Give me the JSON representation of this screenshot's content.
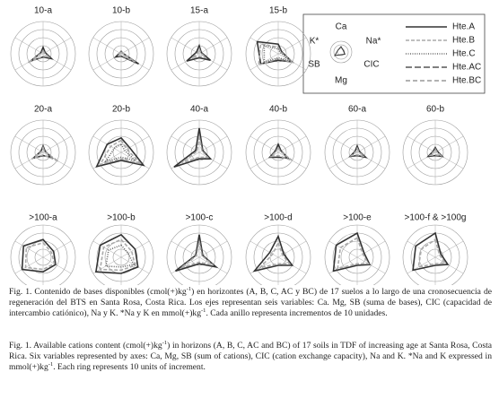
{
  "legend": {
    "axes": [
      "Ca",
      "Na*",
      "CIC",
      "Mg",
      "SB",
      "K*"
    ],
    "series": [
      {
        "name": "Hte.A",
        "color": "#333333",
        "dash": ""
      },
      {
        "name": "Hte.B",
        "color": "#aaaaaa",
        "dash": "4 2"
      },
      {
        "name": "Hte.C",
        "color": "#666666",
        "dash": "1 1.5"
      },
      {
        "name": "Hte.AC",
        "color": "#555555",
        "dash": "7 3"
      },
      {
        "name": "Hte.BC",
        "color": "#999999",
        "dash": "5 3"
      }
    ]
  },
  "chart_data": [
    {
      "type": "radar",
      "title": "10-a",
      "rlim": [
        0,
        40
      ],
      "rticks": [
        10,
        20,
        30,
        40
      ],
      "series": [
        {
          "values": [
            8,
            3,
            12,
            4,
            18,
            3
          ]
        },
        {
          "values": [
            4,
            2,
            8,
            3,
            22,
            2
          ]
        }
      ]
    },
    {
      "type": "radar",
      "title": "10-b",
      "rlim": [
        0,
        40
      ],
      "rticks": [
        10,
        20,
        30,
        40
      ],
      "series": [
        {
          "values": [
            3,
            2,
            25,
            3,
            8,
            2
          ]
        },
        {
          "values": [
            2,
            2,
            20,
            2,
            5,
            2
          ]
        }
      ]
    },
    {
      "type": "radar",
      "title": "15-a",
      "rlim": [
        0,
        40
      ],
      "rticks": [
        10,
        20,
        30,
        40
      ],
      "series": [
        {
          "values": [
            10,
            3,
            16,
            5,
            18,
            4
          ]
        },
        {
          "values": [
            6,
            2,
            10,
            3,
            10,
            2
          ]
        }
      ]
    },
    {
      "type": "radar",
      "title": "15-b",
      "rlim": [
        0,
        40
      ],
      "rticks": [
        10,
        20,
        30,
        40
      ],
      "series": [
        {
          "values": [
            12,
            5,
            20,
            8,
            25,
            30
          ]
        },
        {
          "values": [
            8,
            4,
            22,
            6,
            28,
            25
          ]
        },
        {
          "values": [
            6,
            3,
            18,
            5,
            20,
            20
          ]
        }
      ]
    },
    {
      "type": "radar",
      "title": "20-a",
      "rlim": [
        0,
        40
      ],
      "rticks": [
        10,
        20,
        30,
        40
      ],
      "series": [
        {
          "values": [
            8,
            3,
            12,
            4,
            14,
            3
          ]
        },
        {
          "values": [
            6,
            2,
            22,
            3,
            16,
            2
          ]
        }
      ]
    },
    {
      "type": "radar",
      "title": "20-b",
      "rlim": [
        0,
        40
      ],
      "rticks": [
        10,
        20,
        30,
        40
      ],
      "series": [
        {
          "values": [
            18,
            12,
            32,
            10,
            35,
            20
          ]
        },
        {
          "values": [
            15,
            8,
            28,
            8,
            30,
            15
          ]
        },
        {
          "values": [
            10,
            5,
            20,
            6,
            22,
            10
          ]
        }
      ]
    },
    {
      "type": "radar",
      "title": "40-a",
      "rlim": [
        0,
        40
      ],
      "rticks": [
        10,
        20,
        30,
        40
      ],
      "series": [
        {
          "values": [
            30,
            5,
            16,
            8,
            36,
            5
          ]
        },
        {
          "values": [
            20,
            4,
            12,
            6,
            25,
            3
          ]
        }
      ]
    },
    {
      "type": "radar",
      "title": "40-b",
      "rlim": [
        0,
        40
      ],
      "rticks": [
        10,
        20,
        30,
        40
      ],
      "series": [
        {
          "values": [
            10,
            4,
            14,
            6,
            12,
            4
          ]
        },
        {
          "values": [
            6,
            3,
            20,
            4,
            10,
            3
          ]
        }
      ]
    },
    {
      "type": "radar",
      "title": "60-a",
      "rlim": [
        0,
        40
      ],
      "rticks": [
        10,
        20,
        30,
        40
      ],
      "series": [
        {
          "values": [
            8,
            3,
            12,
            4,
            10,
            3
          ]
        },
        {
          "values": [
            5,
            2,
            10,
            3,
            8,
            2
          ]
        }
      ]
    },
    {
      "type": "radar",
      "title": "60-b",
      "rlim": [
        0,
        40
      ],
      "rticks": [
        10,
        20,
        30,
        40
      ],
      "series": [
        {
          "values": [
            6,
            3,
            10,
            4,
            10,
            3
          ]
        },
        {
          "values": [
            4,
            2,
            8,
            3,
            7,
            2
          ]
        }
      ]
    },
    {
      "type": "radar",
      "title": ">100-a",
      "rlim": [
        0,
        40
      ],
      "rticks": [
        10,
        20,
        30,
        40
      ],
      "series": [
        {
          "values": [
            22,
            15,
            18,
            18,
            30,
            28
          ]
        },
        {
          "values": [
            18,
            12,
            16,
            15,
            25,
            24
          ]
        }
      ]
    },
    {
      "type": "radar",
      "title": ">100-b",
      "rlim": [
        0,
        40
      ],
      "rticks": [
        10,
        20,
        30,
        40
      ],
      "series": [
        {
          "values": [
            28,
            20,
            24,
            20,
            36,
            30
          ]
        },
        {
          "values": [
            22,
            15,
            20,
            16,
            30,
            25
          ]
        },
        {
          "values": [
            15,
            10,
            18,
            12,
            22,
            18
          ]
        }
      ]
    },
    {
      "type": "radar",
      "title": ">100-c",
      "rlim": [
        0,
        40
      ],
      "rticks": [
        10,
        20,
        30,
        40
      ],
      "series": [
        {
          "values": [
            28,
            5,
            24,
            8,
            34,
            5
          ]
        },
        {
          "values": [
            20,
            4,
            20,
            6,
            26,
            4
          ]
        }
      ]
    },
    {
      "type": "radar",
      "title": ">100-d",
      "rlim": [
        0,
        40
      ],
      "rticks": [
        10,
        20,
        30,
        40
      ],
      "series": [
        {
          "values": [
            26,
            8,
            20,
            10,
            34,
            12
          ]
        },
        {
          "values": [
            18,
            6,
            16,
            8,
            26,
            8
          ]
        }
      ]
    },
    {
      "type": "radar",
      "title": ">100-e",
      "rlim": [
        0,
        40
      ],
      "rticks": [
        10,
        20,
        30,
        40
      ],
      "series": [
        {
          "values": [
            30,
            10,
            18,
            10,
            34,
            30
          ]
        },
        {
          "values": [
            24,
            8,
            16,
            8,
            28,
            24
          ]
        }
      ]
    },
    {
      "type": "radar",
      "title": ">100-f & >100g",
      "rlim": [
        0,
        40
      ],
      "rticks": [
        10,
        20,
        30,
        40
      ],
      "series": [
        {
          "values": [
            30,
            8,
            18,
            10,
            32,
            28
          ]
        },
        {
          "values": [
            22,
            6,
            14,
            8,
            24,
            20
          ]
        }
      ]
    }
  ],
  "captions": [
    [
      "Fig. 1. Contenido de bases disponibles (cmol(+)kg",
      "-1",
      ") en horizontes (A, B, C, AC y BC) de 17 suelos a lo largo de una cronosecuencia de regeneración del BTS en Santa Rosa, Costa Rica. Los ejes representan seis variables: Ca. Mg, SB (suma de bases), CIC (capacidad de intercambio catiónico), Na y K. *Na y K en mmol(+)kg",
      "-1",
      ". Cada anillo representa incrementos de 10 unidades."
    ],
    [
      "Fig. 1. Available cations content (cmol(+)kg",
      "-1",
      ") in horizons (A, B, C, AC and BC) of 17 soils in TDF of increasing age at Santa Rosa, Costa Rica. Six variables represented by axes: Ca, Mg, SB (sum of cations), CIC (cation exchange capacity), Na and K. *Na and K expressed in mmol(+)kg",
      "-1",
      ". Each ring represents 10 units of increment."
    ]
  ]
}
